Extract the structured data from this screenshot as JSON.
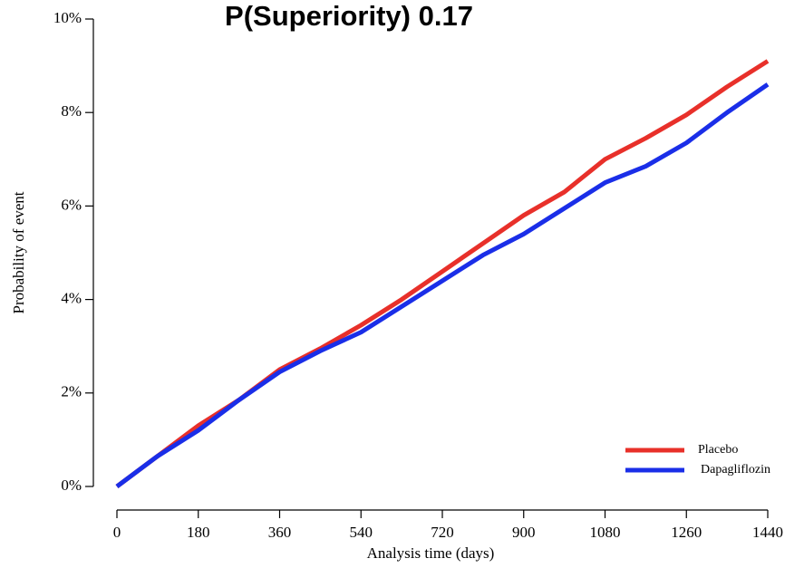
{
  "chart_data": {
    "type": "line",
    "title": "P(Superiority) 0.17",
    "x_label": "Analysis time (days)",
    "y_label": "Probability of event",
    "x": [
      0,
      90,
      180,
      270,
      360,
      450,
      540,
      630,
      720,
      810,
      900,
      990,
      1080,
      1170,
      1260,
      1350,
      1440
    ],
    "series": [
      {
        "name": "Placebo",
        "color": "#e8302a",
        "values": [
          0,
          0.65,
          1.3,
          1.85,
          2.5,
          2.95,
          3.45,
          4.0,
          4.6,
          5.2,
          5.8,
          6.3,
          7.0,
          7.45,
          7.95,
          8.55,
          9.1
        ]
      },
      {
        "name": "Dapagliflozin",
        "color": "#1a2ee8",
        "values": [
          0,
          0.65,
          1.2,
          1.85,
          2.45,
          2.9,
          3.3,
          3.85,
          4.4,
          4.95,
          5.4,
          5.95,
          6.5,
          6.85,
          7.35,
          8.0,
          8.6
        ]
      }
    ],
    "xlim": [
      0,
      1440
    ],
    "xticks": [
      0,
      180,
      360,
      540,
      720,
      900,
      1080,
      1260,
      1440
    ],
    "ylim": [
      0,
      10
    ],
    "yticks": [
      {
        "value": 0,
        "label": "0%"
      },
      {
        "value": 2,
        "label": "2%"
      },
      {
        "value": 4,
        "label": "4%"
      },
      {
        "value": 6,
        "label": "6%"
      },
      {
        "value": 8,
        "label": "8%"
      },
      {
        "value": 10,
        "label": "10%"
      }
    ],
    "legend": "bottom-right"
  }
}
